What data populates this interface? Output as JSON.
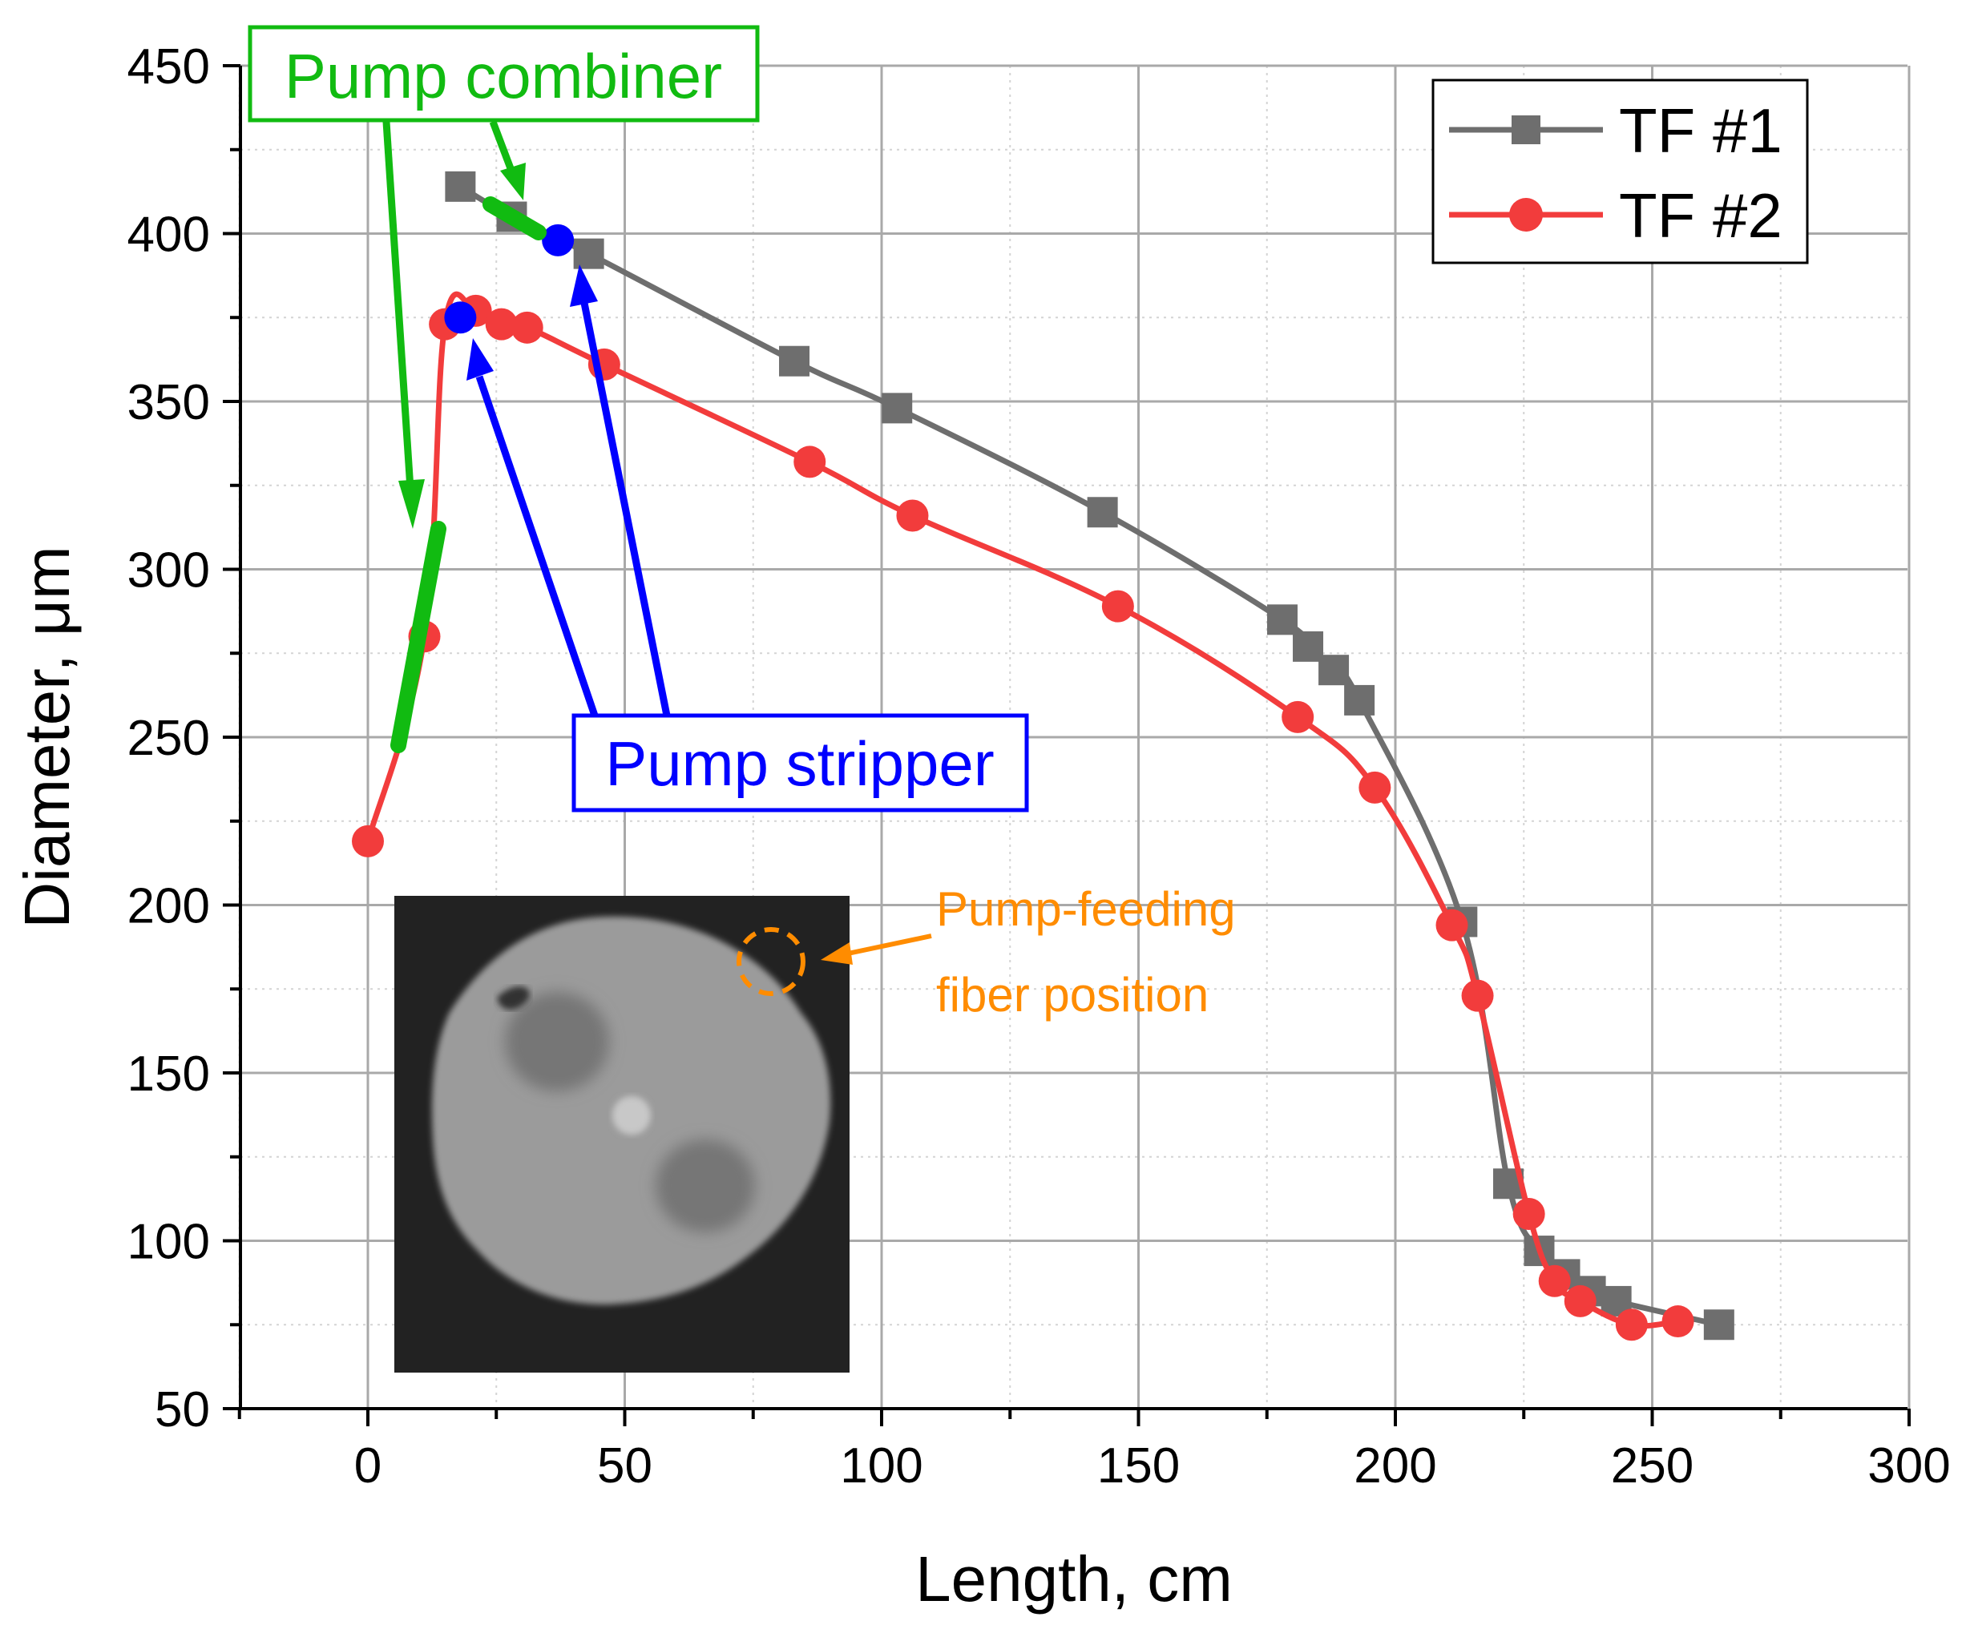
{
  "chart_data": {
    "type": "line",
    "xlabel": "Length, cm",
    "ylabel": "Diameter, μm",
    "xlim": [
      -25,
      300
    ],
    "ylim": [
      50,
      450
    ],
    "xticks": [
      0,
      50,
      100,
      150,
      200,
      250,
      300
    ],
    "yticks": [
      50,
      100,
      150,
      200,
      250,
      300,
      350,
      400,
      450
    ],
    "grid": true,
    "legend_position": "top-right",
    "series": [
      {
        "name": "TF #1",
        "color": "#6e6e6e",
        "marker": "square",
        "x": [
          18,
          28,
          43,
          83,
          103,
          143,
          178,
          183,
          188,
          193,
          213,
          222,
          228,
          233,
          238,
          243,
          263
        ],
        "y": [
          414,
          405,
          394,
          362,
          348,
          317,
          285,
          277,
          270,
          261,
          195,
          117,
          97,
          90,
          85,
          82,
          75
        ]
      },
      {
        "name": "TF #2",
        "color": "#f23c3c",
        "marker": "circle",
        "x": [
          0,
          11,
          15,
          21,
          26,
          31,
          46,
          86,
          106,
          146,
          181,
          196,
          211,
          216,
          226,
          231,
          236,
          246,
          255
        ],
        "y": [
          219,
          280,
          373,
          377,
          373,
          372,
          361,
          332,
          316,
          289,
          256,
          235,
          194,
          173,
          108,
          88,
          82,
          75,
          76
        ]
      }
    ],
    "highlight_points": [
      {
        "x": 37,
        "y": 398,
        "color": "#0000ff"
      },
      {
        "x": 18,
        "y": 375,
        "color": "#0000ff"
      }
    ],
    "annotations": [
      {
        "text": "Pump combiner",
        "color": "#11bb11"
      },
      {
        "text": "Pump stripper",
        "color": "#0000ff"
      },
      {
        "lines": [
          "Pump-feeding",
          "fiber position"
        ],
        "color": "#ff8c00"
      }
    ],
    "inset_image": "fiber cross-section micrograph"
  }
}
